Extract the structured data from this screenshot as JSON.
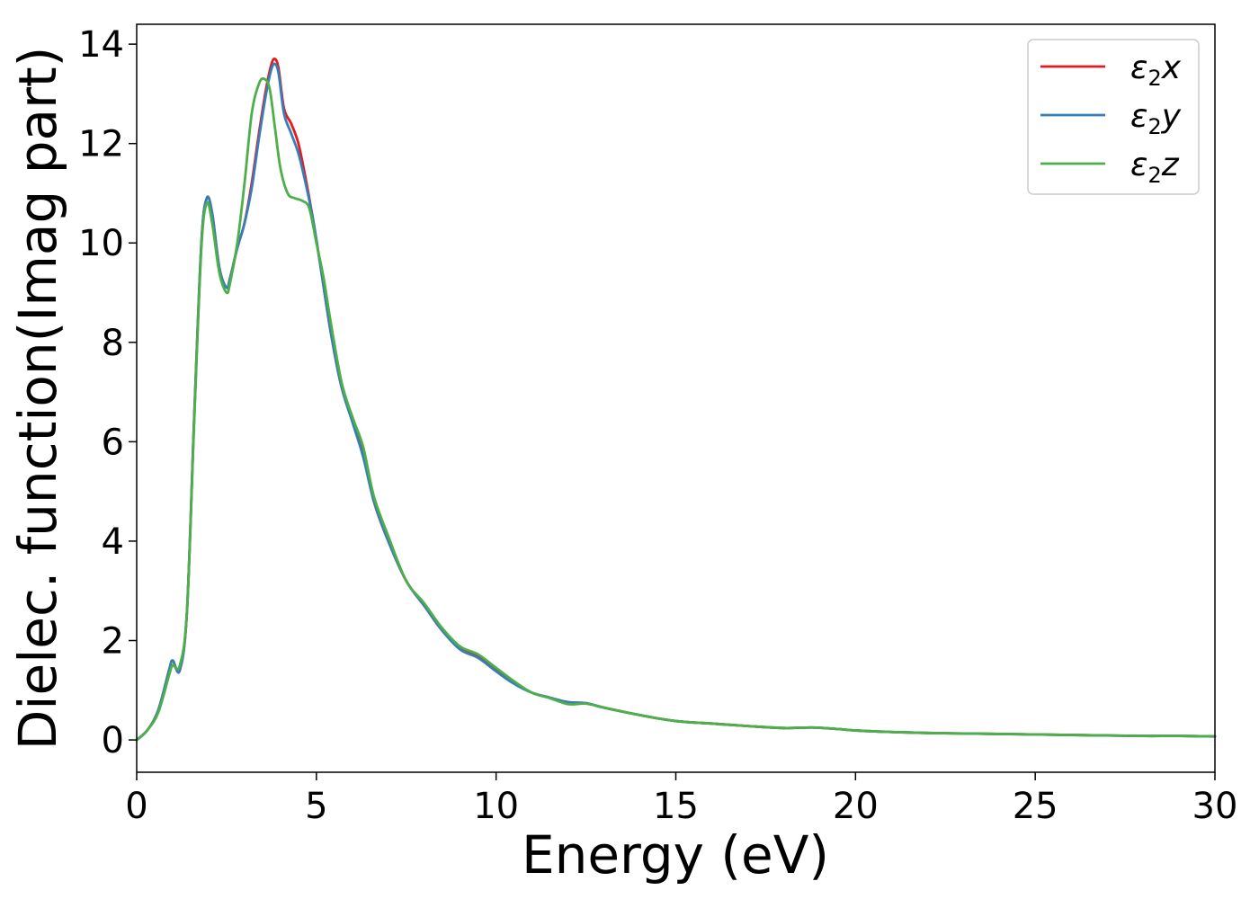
{
  "chart_data": {
    "type": "line",
    "xlabel": "Energy (eV)",
    "ylabel": "Dielec. function(Imag part)",
    "xlim": [
      0,
      30
    ],
    "ylim": [
      -0.65,
      14.4
    ],
    "xticks": [
      0,
      5,
      10,
      15,
      20,
      25,
      30
    ],
    "yticks": [
      0,
      2,
      4,
      6,
      8,
      10,
      12,
      14
    ],
    "grid": false,
    "legend_position": "top-right",
    "series": [
      {
        "name": "ε2x",
        "legend": {
          "base": "ε",
          "sub": "2",
          "suffix": "x"
        },
        "color": "#e41a1c",
        "x": [
          0,
          0.3,
          0.6,
          0.9,
          1.0,
          1.2,
          1.4,
          1.6,
          1.8,
          1.95,
          2.1,
          2.3,
          2.5,
          2.6,
          2.8,
          3.0,
          3.2,
          3.4,
          3.6,
          3.75,
          3.85,
          3.95,
          4.1,
          4.3,
          4.5,
          4.7,
          4.9,
          5.1,
          5.4,
          5.7,
          6.0,
          6.3,
          6.6,
          7.0,
          7.5,
          8.0,
          8.5,
          9.0,
          9.5,
          10.0,
          10.5,
          11.0,
          11.5,
          12.0,
          12.5,
          13.0,
          14.0,
          15.0,
          16.0,
          17.0,
          18.0,
          18.8,
          19.5,
          20.0,
          21.0,
          22.0,
          23.0,
          24.0,
          25.0,
          26.0,
          27.0,
          28.0,
          29.0,
          30.0
        ],
        "y": [
          0,
          0.2,
          0.6,
          1.4,
          1.6,
          1.4,
          2.6,
          6.5,
          10.0,
          10.9,
          10.6,
          9.5,
          9.1,
          9.3,
          9.9,
          10.4,
          11.2,
          12.2,
          13.1,
          13.6,
          13.7,
          13.5,
          12.7,
          12.4,
          12.0,
          11.3,
          10.5,
          9.6,
          8.2,
          7.1,
          6.5,
          5.8,
          4.8,
          4.0,
          3.2,
          2.7,
          2.2,
          1.85,
          1.68,
          1.4,
          1.15,
          0.95,
          0.85,
          0.76,
          0.74,
          0.65,
          0.5,
          0.38,
          0.33,
          0.28,
          0.24,
          0.25,
          0.22,
          0.19,
          0.16,
          0.14,
          0.13,
          0.12,
          0.11,
          0.1,
          0.09,
          0.08,
          0.08,
          0.07
        ]
      },
      {
        "name": "ε2y",
        "legend": {
          "base": "ε",
          "sub": "2",
          "suffix": "y"
        },
        "color": "#377eb8",
        "x": [
          0,
          0.3,
          0.6,
          0.9,
          1.0,
          1.2,
          1.4,
          1.6,
          1.8,
          1.95,
          2.1,
          2.3,
          2.5,
          2.6,
          2.8,
          3.0,
          3.2,
          3.4,
          3.6,
          3.75,
          3.85,
          3.95,
          4.1,
          4.3,
          4.5,
          4.7,
          4.9,
          5.1,
          5.4,
          5.7,
          6.0,
          6.3,
          6.6,
          7.0,
          7.5,
          8.0,
          8.5,
          9.0,
          9.5,
          10.0,
          10.5,
          11.0,
          11.5,
          12.0,
          12.5,
          13.0,
          14.0,
          15.0,
          16.0,
          17.0,
          18.0,
          18.8,
          19.5,
          20.0,
          21.0,
          22.0,
          23.0,
          24.0,
          25.0,
          26.0,
          27.0,
          28.0,
          29.0,
          30.0
        ],
        "y": [
          0,
          0.2,
          0.6,
          1.4,
          1.6,
          1.4,
          2.6,
          6.5,
          10.0,
          10.9,
          10.6,
          9.5,
          9.1,
          9.3,
          9.9,
          10.4,
          11.1,
          12.1,
          13.0,
          13.5,
          13.6,
          13.4,
          12.6,
          12.2,
          11.8,
          11.2,
          10.5,
          9.6,
          8.2,
          7.1,
          6.4,
          5.7,
          4.8,
          4.0,
          3.2,
          2.7,
          2.2,
          1.82,
          1.65,
          1.38,
          1.13,
          0.95,
          0.85,
          0.76,
          0.74,
          0.65,
          0.5,
          0.38,
          0.33,
          0.28,
          0.24,
          0.25,
          0.22,
          0.19,
          0.16,
          0.14,
          0.13,
          0.12,
          0.11,
          0.1,
          0.09,
          0.08,
          0.08,
          0.07
        ]
      },
      {
        "name": "ε2z",
        "legend": {
          "base": "ε",
          "sub": "2",
          "suffix": "z"
        },
        "color": "#4daf4a",
        "x": [
          0,
          0.3,
          0.6,
          0.9,
          1.0,
          1.2,
          1.4,
          1.6,
          1.8,
          1.95,
          2.1,
          2.3,
          2.5,
          2.6,
          2.8,
          3.0,
          3.2,
          3.4,
          3.55,
          3.7,
          3.85,
          4.0,
          4.2,
          4.4,
          4.6,
          4.8,
          5.0,
          5.2,
          5.4,
          5.7,
          6.0,
          6.3,
          6.6,
          7.0,
          7.5,
          8.0,
          8.5,
          9.0,
          9.5,
          10.0,
          10.5,
          11.0,
          11.5,
          12.0,
          12.5,
          13.0,
          14.0,
          15.0,
          16.0,
          17.0,
          18.0,
          18.8,
          19.5,
          20.0,
          21.0,
          22.0,
          23.0,
          24.0,
          25.0,
          26.0,
          27.0,
          28.0,
          29.0,
          30.0
        ],
        "y": [
          0,
          0.2,
          0.55,
          1.3,
          1.5,
          1.5,
          2.6,
          6.4,
          9.9,
          10.8,
          10.4,
          9.4,
          9.0,
          9.2,
          10.0,
          11.2,
          12.6,
          13.2,
          13.3,
          13.1,
          12.3,
          11.5,
          11.0,
          10.9,
          10.85,
          10.7,
          10.0,
          9.3,
          8.4,
          7.2,
          6.5,
          5.9,
          4.9,
          4.1,
          3.2,
          2.75,
          2.25,
          1.88,
          1.72,
          1.45,
          1.18,
          0.95,
          0.84,
          0.72,
          0.73,
          0.65,
          0.5,
          0.38,
          0.33,
          0.28,
          0.24,
          0.25,
          0.22,
          0.19,
          0.16,
          0.14,
          0.13,
          0.12,
          0.11,
          0.1,
          0.09,
          0.08,
          0.08,
          0.07
        ]
      }
    ]
  }
}
